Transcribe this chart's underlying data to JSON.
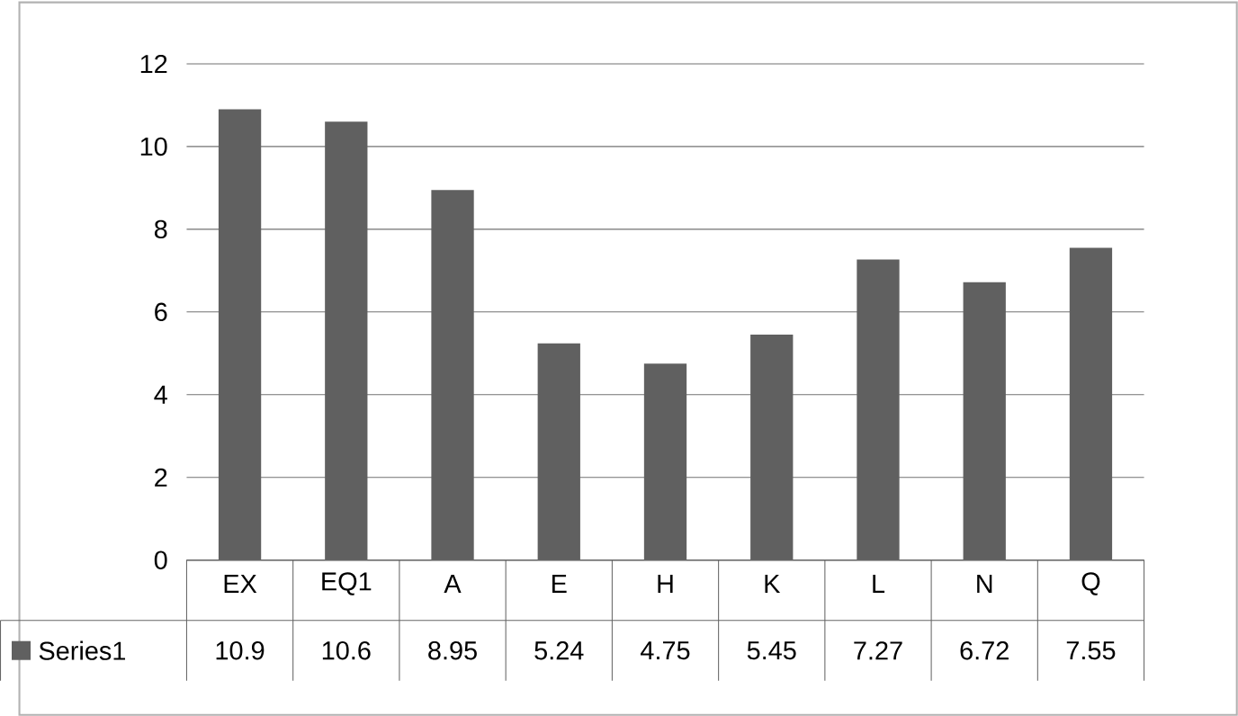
{
  "chart_data": {
    "type": "bar",
    "categories": [
      "EX",
      "EQ1",
      "A",
      "E",
      "H",
      "K",
      "L",
      "N",
      "Q"
    ],
    "series": [
      {
        "name": "Series1",
        "color": "#606060",
        "values": [
          10.9,
          10.6,
          8.95,
          5.24,
          4.75,
          5.45,
          7.27,
          6.72,
          7.55
        ]
      }
    ],
    "ylim": [
      0,
      12
    ],
    "yticks": [
      0,
      2,
      4,
      6,
      8,
      10,
      12
    ],
    "grid": "y",
    "legend": "bottom",
    "data_labels": true
  }
}
